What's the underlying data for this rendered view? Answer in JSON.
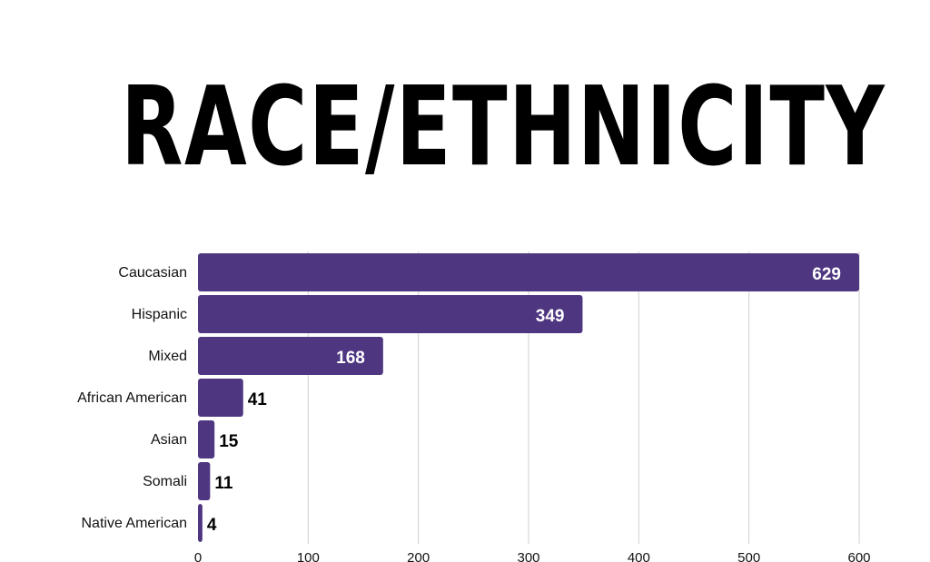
{
  "title": "RACE/ETHNICITY",
  "colors": {
    "bar": "#4e3681",
    "grid": "#cfcfcf",
    "label_inside": "#ffffff",
    "label_outside": "#000000"
  },
  "chart_data": {
    "type": "bar",
    "orientation": "horizontal",
    "title": "RACE/ETHNICITY",
    "categories": [
      "Caucasian",
      "Hispanic",
      "Mixed",
      "African American",
      "Asian",
      "Somali",
      "Native American"
    ],
    "values": [
      629,
      349,
      168,
      41,
      15,
      11,
      4
    ],
    "xlim": [
      0,
      600
    ],
    "xticks": [
      0,
      100,
      200,
      300,
      400,
      500,
      600
    ],
    "xlabel": "",
    "ylabel": "",
    "grid": "vertical"
  }
}
